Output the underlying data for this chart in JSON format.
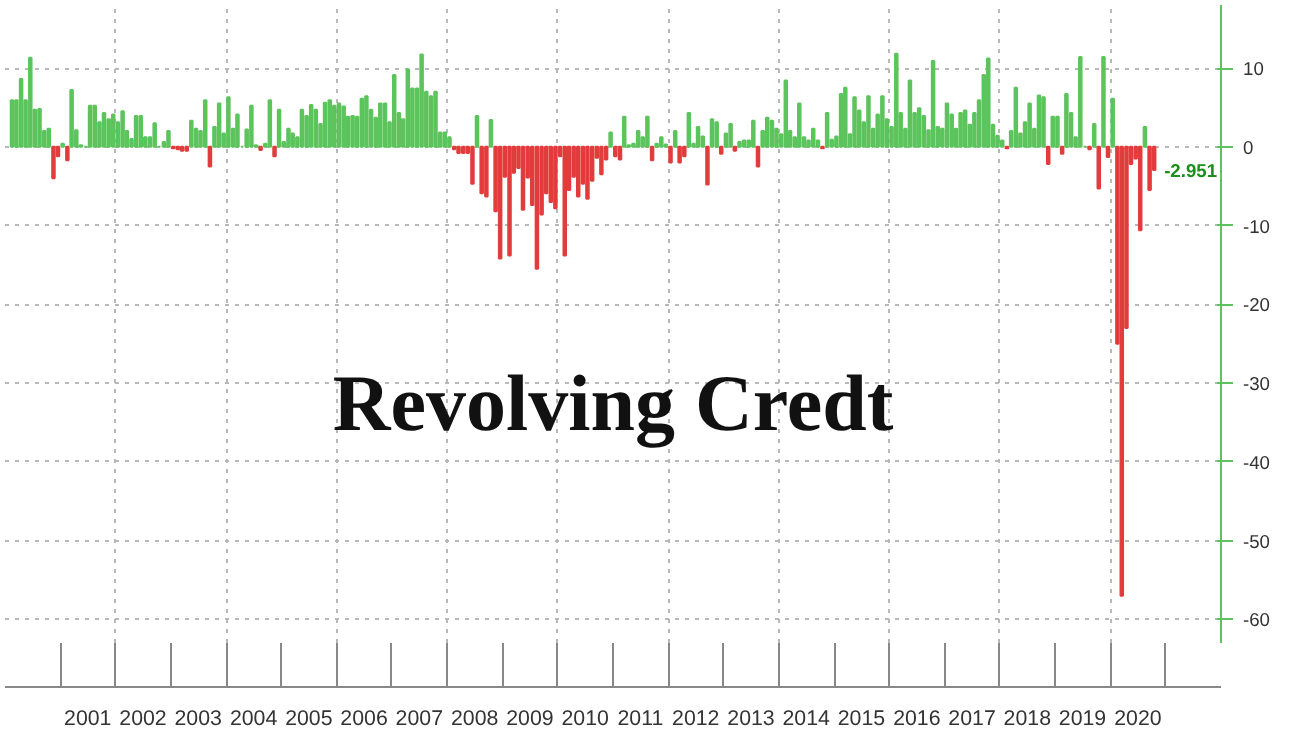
{
  "chart_data": {
    "type": "bar",
    "title": "Revolving Credt",
    "x": [
      "2000-02",
      "2000-03",
      "2000-04",
      "2000-05",
      "2000-06",
      "2000-07",
      "2000-08",
      "2000-09",
      "2000-10",
      "2000-11",
      "2000-12",
      "2001-01",
      "2001-02",
      "2001-03",
      "2001-04",
      "2001-05",
      "2001-06",
      "2001-07",
      "2001-08",
      "2001-09",
      "2001-10",
      "2001-11",
      "2001-12",
      "2002-01",
      "2002-02",
      "2002-03",
      "2002-04",
      "2002-05",
      "2002-06",
      "2002-07",
      "2002-08",
      "2002-09",
      "2002-10",
      "2002-11",
      "2002-12",
      "2003-01",
      "2003-02",
      "2003-03",
      "2003-04",
      "2003-05",
      "2003-06",
      "2003-07",
      "2003-08",
      "2003-09",
      "2003-10",
      "2003-11",
      "2003-12",
      "2004-01",
      "2004-02",
      "2004-03",
      "2004-04",
      "2004-05",
      "2004-06",
      "2004-07",
      "2004-08",
      "2004-09",
      "2004-10",
      "2004-11",
      "2004-12",
      "2005-01",
      "2005-02",
      "2005-03",
      "2005-04",
      "2005-05",
      "2005-06",
      "2005-07",
      "2005-08",
      "2005-09",
      "2005-10",
      "2005-11",
      "2005-12",
      "2006-01",
      "2006-02",
      "2006-03",
      "2006-04",
      "2006-05",
      "2006-06",
      "2006-07",
      "2006-08",
      "2006-09",
      "2006-10",
      "2006-11",
      "2006-12",
      "2007-01",
      "2007-02",
      "2007-03",
      "2007-04",
      "2007-05",
      "2007-06",
      "2007-07",
      "2007-08",
      "2007-09",
      "2007-10",
      "2007-11",
      "2007-12",
      "2008-01",
      "2008-02",
      "2008-03",
      "2008-04",
      "2008-05",
      "2008-06",
      "2008-07",
      "2008-08",
      "2008-09",
      "2008-10",
      "2008-11",
      "2008-12",
      "2009-01",
      "2009-02",
      "2009-03",
      "2009-04",
      "2009-05",
      "2009-06",
      "2009-07",
      "2009-08",
      "2009-09",
      "2009-10",
      "2009-11",
      "2009-12",
      "2010-01",
      "2010-02",
      "2010-03",
      "2010-04",
      "2010-05",
      "2010-06",
      "2010-07",
      "2010-08",
      "2010-09",
      "2010-10",
      "2010-11",
      "2010-12",
      "2011-01",
      "2011-02",
      "2011-03",
      "2011-04",
      "2011-05",
      "2011-06",
      "2011-07",
      "2011-08",
      "2011-09",
      "2011-10",
      "2011-11",
      "2011-12",
      "2012-01",
      "2012-02",
      "2012-03",
      "2012-04",
      "2012-05",
      "2012-06",
      "2012-07",
      "2012-08",
      "2012-09",
      "2012-10",
      "2012-11",
      "2012-12",
      "2013-01",
      "2013-02",
      "2013-03",
      "2013-04",
      "2013-05",
      "2013-06",
      "2013-07",
      "2013-08",
      "2013-09",
      "2013-10",
      "2013-11",
      "2013-12",
      "2014-01",
      "2014-02",
      "2014-03",
      "2014-04",
      "2014-05",
      "2014-06",
      "2014-07",
      "2014-08",
      "2014-09",
      "2014-10",
      "2014-11",
      "2014-12",
      "2015-01",
      "2015-02",
      "2015-03",
      "2015-04",
      "2015-05",
      "2015-06",
      "2015-07",
      "2015-08",
      "2015-09",
      "2015-10",
      "2015-11",
      "2015-12",
      "2016-01",
      "2016-02",
      "2016-03",
      "2016-04",
      "2016-05",
      "2016-06",
      "2016-07",
      "2016-08",
      "2016-09",
      "2016-10",
      "2016-11",
      "2016-12",
      "2017-01",
      "2017-02",
      "2017-03",
      "2017-04",
      "2017-05",
      "2017-06",
      "2017-07",
      "2017-08",
      "2017-09",
      "2017-10",
      "2017-11",
      "2017-12",
      "2018-01",
      "2018-02",
      "2018-03",
      "2018-04",
      "2018-05",
      "2018-06",
      "2018-07",
      "2018-08",
      "2018-09",
      "2018-10",
      "2018-11",
      "2018-12",
      "2019-01",
      "2019-02",
      "2019-03",
      "2019-04",
      "2019-05",
      "2019-06",
      "2019-07",
      "2019-08",
      "2019-09",
      "2019-10",
      "2019-11",
      "2019-12",
      "2020-01",
      "2020-02",
      "2020-03",
      "2020-04",
      "2020-05",
      "2020-06",
      "2020-07",
      "2020-08",
      "2020-09",
      "2020-10"
    ],
    "values": [
      5.9,
      5.9,
      8.6,
      5.9,
      11.3,
      4.7,
      4.8,
      2,
      2.3,
      -4,
      -1.2,
      0.4,
      -1.7,
      7.2,
      2.1,
      0.2,
      0,
      5.2,
      5.2,
      3.1,
      4.3,
      3.5,
      4.1,
      3.1,
      4.5,
      2,
      1,
      3.9,
      3.9,
      1.2,
      1.2,
      3,
      0,
      0.6,
      2,
      -0.2,
      -0.3,
      -0.5,
      -0.5,
      3.3,
      2.3,
      2,
      5.9,
      -2.5,
      2.5,
      5.5,
      1.7,
      6.3,
      2.3,
      4.1,
      0,
      2.2,
      5.2,
      0.2,
      -0.4,
      0.4,
      5.9,
      -1.2,
      4.7,
      0.6,
      2.3,
      1.7,
      1.2,
      4.7,
      3.9,
      5.3,
      4.7,
      2.9,
      5.6,
      5.9,
      5.2,
      5.5,
      5.1,
      3.8,
      3.9,
      3.8,
      6.1,
      6.4,
      4.7,
      3.7,
      5.5,
      5.5,
      3.1,
      9.1,
      4.3,
      3.5,
      9.8,
      7.4,
      7.4,
      11.7,
      7,
      6.4,
      7,
      1.8,
      1.8,
      1.2,
      -0.3,
      -0.8,
      -0.8,
      -0.8,
      -4.7,
      3.9,
      -5.9,
      -6.3,
      3.4,
      -8.2,
      -14.2,
      -3.8,
      -13.8,
      -3.3,
      -2.7,
      -8,
      -3.9,
      -7.4,
      -15.5,
      -8.6,
      -5.9,
      -7,
      -7.8,
      -1.2,
      -13.8,
      -5.5,
      -3.8,
      -6.3,
      -4.7,
      -6.6,
      -4.3,
      -1.4,
      -3.5,
      -1.6,
      1.8,
      -1.2,
      -1.6,
      3.8,
      0.2,
      0.4,
      2,
      1.2,
      3.8,
      -1.7,
      0.4,
      1.2,
      0.3,
      -2,
      2,
      -2,
      -1.2,
      4.3,
      0.4,
      2.5,
      1.3,
      -4.8,
      3.5,
      3.1,
      -0.9,
      1.7,
      2.9,
      -0.5,
      0.6,
      0.8,
      0.8,
      3.3,
      -2.5,
      2,
      3.7,
      3.3,
      2.3,
      1.6,
      8.4,
      2,
      1.2,
      5.5,
      1.2,
      0.8,
      2.3,
      0.8,
      -0.2,
      4.3,
      0.9,
      1.3,
      6.7,
      7.5,
      1.6,
      6.3,
      4.6,
      3.1,
      6.4,
      2.3,
      4.1,
      6.4,
      3.5,
      2.5,
      11.8,
      4.3,
      2.3,
      8.4,
      4.3,
      4.9,
      3.9,
      2.1,
      10.9,
      2.5,
      2.3,
      5.5,
      4.1,
      2.3,
      4.3,
      4.6,
      2.8,
      4.3,
      5.9,
      9.1,
      11.2,
      2.8,
      1.4,
      0.8,
      -0.2,
      2,
      7.5,
      1.7,
      3.1,
      5.5,
      2.3,
      6.5,
      6.3,
      -2.2,
      3.8,
      3.8,
      -0.9,
      6.7,
      4.3,
      1.2,
      11.4,
      0,
      -0.3,
      2.9,
      -5.3,
      11.4,
      -1.3,
      6.1,
      -25,
      -57,
      -23,
      -2.2,
      -1.5,
      -10.6,
      2.5,
      -5.5,
      -2.951
    ],
    "colors": [
      "#5cc45c",
      "#5cc45c",
      "#5cc45c",
      "#5cc45c",
      "#5cc45c",
      "#5cc45c",
      "#5cc45c",
      "#5cc45c",
      "#5cc45c",
      "#e23c3c",
      "#e23c3c",
      "#5cc45c",
      "#e23c3c",
      "#5cc45c",
      "#5cc45c",
      "#5cc45c",
      "#5cc45c",
      "#5cc45c",
      "#5cc45c",
      "#5cc45c",
      "#5cc45c",
      "#5cc45c",
      "#5cc45c",
      "#5cc45c",
      "#5cc45c",
      "#5cc45c",
      "#5cc45c",
      "#5cc45c",
      "#5cc45c",
      "#5cc45c",
      "#5cc45c",
      "#5cc45c",
      "#5cc45c",
      "#5cc45c",
      "#5cc45c",
      "#e23c3c",
      "#e23c3c",
      "#e23c3c",
      "#e23c3c",
      "#5cc45c",
      "#5cc45c",
      "#5cc45c",
      "#5cc45c",
      "#e23c3c",
      "#5cc45c",
      "#5cc45c",
      "#5cc45c",
      "#5cc45c",
      "#5cc45c",
      "#5cc45c",
      "#5cc45c",
      "#5cc45c",
      "#5cc45c",
      "#5cc45c",
      "#e23c3c",
      "#5cc45c",
      "#5cc45c",
      "#e23c3c",
      "#5cc45c",
      "#5cc45c",
      "#5cc45c",
      "#5cc45c",
      "#5cc45c",
      "#5cc45c",
      "#5cc45c",
      "#5cc45c",
      "#5cc45c",
      "#5cc45c",
      "#5cc45c",
      "#5cc45c",
      "#5cc45c",
      "#5cc45c",
      "#5cc45c",
      "#5cc45c",
      "#5cc45c",
      "#5cc45c",
      "#5cc45c",
      "#5cc45c",
      "#5cc45c",
      "#5cc45c",
      "#5cc45c",
      "#5cc45c",
      "#5cc45c",
      "#5cc45c",
      "#5cc45c",
      "#5cc45c",
      "#5cc45c",
      "#5cc45c",
      "#5cc45c",
      "#5cc45c",
      "#5cc45c",
      "#5cc45c",
      "#5cc45c",
      "#5cc45c",
      "#5cc45c",
      "#5cc45c",
      "#e23c3c",
      "#e23c3c",
      "#e23c3c",
      "#e23c3c",
      "#e23c3c",
      "#5cc45c",
      "#e23c3c",
      "#e23c3c",
      "#5cc45c",
      "#e23c3c",
      "#e23c3c",
      "#e23c3c",
      "#e23c3c",
      "#e23c3c",
      "#e23c3c",
      "#e23c3c",
      "#e23c3c",
      "#e23c3c",
      "#e23c3c",
      "#e23c3c",
      "#e23c3c",
      "#e23c3c",
      "#e23c3c",
      "#e23c3c",
      "#e23c3c",
      "#e23c3c",
      "#e23c3c",
      "#e23c3c",
      "#e23c3c",
      "#e23c3c",
      "#e23c3c",
      "#e23c3c",
      "#e23c3c",
      "#e23c3c",
      "#5cc45c",
      "#e23c3c",
      "#e23c3c",
      "#5cc45c",
      "#5cc45c",
      "#5cc45c",
      "#5cc45c",
      "#5cc45c",
      "#5cc45c",
      "#e23c3c",
      "#5cc45c",
      "#5cc45c",
      "#5cc45c",
      "#e23c3c",
      "#5cc45c",
      "#e23c3c",
      "#e23c3c",
      "#5cc45c",
      "#5cc45c",
      "#5cc45c",
      "#5cc45c",
      "#e23c3c",
      "#5cc45c",
      "#5cc45c",
      "#e23c3c",
      "#5cc45c",
      "#5cc45c",
      "#e23c3c",
      "#5cc45c",
      "#5cc45c",
      "#5cc45c",
      "#5cc45c",
      "#e23c3c",
      "#5cc45c",
      "#5cc45c",
      "#5cc45c",
      "#5cc45c",
      "#5cc45c",
      "#5cc45c",
      "#5cc45c",
      "#5cc45c",
      "#5cc45c",
      "#5cc45c",
      "#5cc45c",
      "#5cc45c",
      "#5cc45c",
      "#e23c3c",
      "#5cc45c",
      "#5cc45c",
      "#5cc45c",
      "#5cc45c",
      "#5cc45c",
      "#5cc45c",
      "#5cc45c",
      "#5cc45c",
      "#5cc45c",
      "#5cc45c",
      "#5cc45c",
      "#5cc45c",
      "#5cc45c",
      "#5cc45c",
      "#5cc45c",
      "#5cc45c",
      "#5cc45c",
      "#5cc45c",
      "#5cc45c",
      "#5cc45c",
      "#5cc45c",
      "#5cc45c",
      "#5cc45c",
      "#5cc45c",
      "#5cc45c",
      "#5cc45c",
      "#5cc45c",
      "#5cc45c",
      "#5cc45c",
      "#5cc45c",
      "#5cc45c",
      "#5cc45c",
      "#5cc45c",
      "#5cc45c",
      "#5cc45c",
      "#5cc45c",
      "#5cc45c",
      "#5cc45c",
      "#5cc45c",
      "#e23c3c",
      "#5cc45c",
      "#5cc45c",
      "#5cc45c",
      "#5cc45c",
      "#5cc45c",
      "#5cc45c",
      "#5cc45c",
      "#5cc45c",
      "#e23c3c",
      "#5cc45c",
      "#5cc45c",
      "#e23c3c",
      "#5cc45c",
      "#5cc45c",
      "#5cc45c",
      "#5cc45c",
      "#5cc45c",
      "#e23c3c",
      "#5cc45c",
      "#e23c3c",
      "#5cc45c",
      "#e23c3c",
      "#5cc45c",
      "#e23c3c",
      "#e23c3c",
      "#e23c3c",
      "#e23c3c",
      "#e23c3c",
      "#e23c3c",
      "#5cc45c",
      "#e23c3c",
      "#e23c3c"
    ],
    "xlim": [
      "2000-01",
      "2022-01"
    ],
    "xticks": [
      {
        "value": "2001-07",
        "label": "2001"
      },
      {
        "value": "2002-07",
        "label": "2002"
      },
      {
        "value": "2003-07",
        "label": "2003"
      },
      {
        "value": "2004-07",
        "label": "2004"
      },
      {
        "value": "2005-07",
        "label": "2005"
      },
      {
        "value": "2006-07",
        "label": "2006"
      },
      {
        "value": "2007-07",
        "label": "2007"
      },
      {
        "value": "2008-07",
        "label": "2008"
      },
      {
        "value": "2009-07",
        "label": "2009"
      },
      {
        "value": "2010-07",
        "label": "2010"
      },
      {
        "value": "2011-07",
        "label": "2011"
      },
      {
        "value": "2012-07",
        "label": "2012"
      },
      {
        "value": "2013-07",
        "label": "2013"
      },
      {
        "value": "2014-07",
        "label": "2014"
      },
      {
        "value": "2015-07",
        "label": "2015"
      },
      {
        "value": "2016-07",
        "label": "2016"
      },
      {
        "value": "2017-07",
        "label": "2017"
      },
      {
        "value": "2018-07",
        "label": "2018"
      },
      {
        "value": "2019-07",
        "label": "2019"
      },
      {
        "value": "2020-07",
        "label": "2020"
      }
    ],
    "ylim": [
      -63,
      18
    ],
    "yticks": [
      -60,
      -50,
      -40,
      -30,
      -20,
      -10,
      0,
      10
    ],
    "grid": true,
    "annotations": [
      {
        "text": "-2.951",
        "x": "2020-10",
        "y": -2.951
      }
    ]
  }
}
